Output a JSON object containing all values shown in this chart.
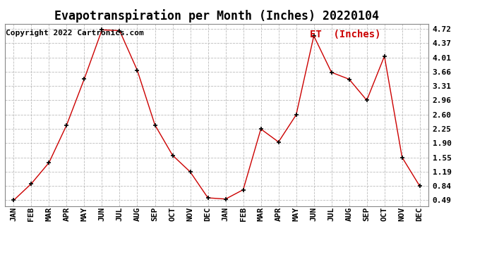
{
  "title": "Evapotranspiration per Month (Inches) 20220104",
  "legend_label": "ET  (Inches)",
  "copyright": "Copyright 2022 Cartronics.com",
  "x_labels": [
    "JAN",
    "FEB",
    "MAR",
    "APR",
    "MAY",
    "JUN",
    "JUL",
    "AUG",
    "SEP",
    "OCT",
    "NOV",
    "DEC",
    "JAN",
    "FEB",
    "MAR",
    "APR",
    "MAY",
    "JUN",
    "JUL",
    "AUG",
    "SEP",
    "OCT",
    "NOV",
    "DEC"
  ],
  "y_values": [
    0.49,
    0.9,
    1.42,
    2.35,
    3.49,
    4.7,
    4.68,
    3.7,
    2.35,
    1.6,
    1.19,
    0.55,
    0.52,
    0.75,
    2.25,
    1.93,
    2.6,
    4.55,
    3.65,
    3.48,
    2.96,
    4.05,
    1.55,
    0.84
  ],
  "y_ticks": [
    0.49,
    0.84,
    1.19,
    1.55,
    1.9,
    2.25,
    2.6,
    2.96,
    3.31,
    3.66,
    4.01,
    4.37,
    4.72
  ],
  "line_color": "#cc0000",
  "marker_color": "#000000",
  "grid_color": "#bbbbbb",
  "background_color": "#ffffff",
  "title_fontsize": 12,
  "legend_fontsize": 10,
  "copyright_fontsize": 8,
  "tick_fontsize": 8,
  "ylim_min": 0.35,
  "ylim_max": 4.85
}
